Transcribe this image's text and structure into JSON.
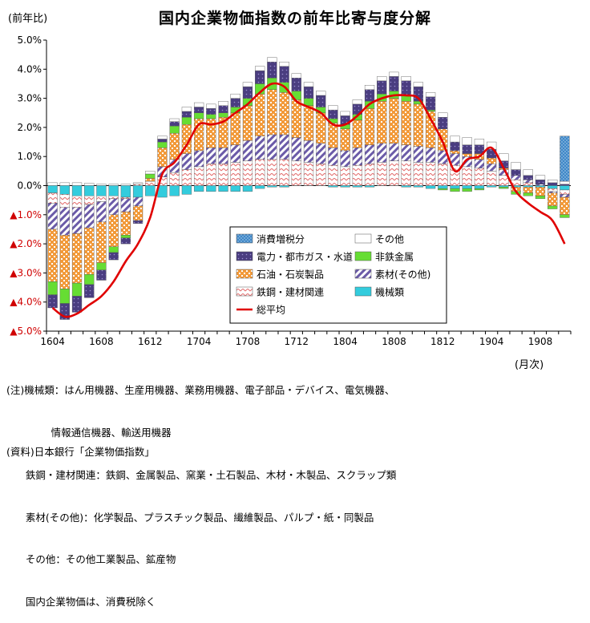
{
  "title": "国内企業物価指数の前年比寄与度分解",
  "y_unit": "(前年比)",
  "x_unit": "(月次)",
  "colors": {
    "機械類": "#33ccdd",
    "鉄鋼・建材関連": "#e36f6f",
    "石油・石炭製品": "#f29a3a",
    "電力・都市ガス・水道": "#4a3d80",
    "非鉄金属": "#66dd33",
    "素材(その他)": "#6b5ba8",
    "その他": "#ffffff",
    "消費増税分": "#3f87c7",
    "総平均": "#e00000"
  },
  "chart_data": {
    "type": "bar",
    "stacked": true,
    "ylim": [
      -5.0,
      5.0
    ],
    "yticks": [
      "5.0%",
      "4.0%",
      "3.0%",
      "2.0%",
      "1.0%",
      "0.0%",
      "▲1.0%",
      "▲2.0%",
      "▲3.0%",
      "▲4.0%",
      "▲5.0%"
    ],
    "xtick_labels": [
      {
        "index": 0,
        "label": "1604"
      },
      {
        "index": 4,
        "label": "1608"
      },
      {
        "index": 8,
        "label": "1612"
      },
      {
        "index": 12,
        "label": "1704"
      },
      {
        "index": 16,
        "label": "1708"
      },
      {
        "index": 20,
        "label": "1712"
      },
      {
        "index": 24,
        "label": "1804"
      },
      {
        "index": 28,
        "label": "1808"
      },
      {
        "index": 32,
        "label": "1812"
      },
      {
        "index": 36,
        "label": "1904"
      },
      {
        "index": 40,
        "label": "1908"
      }
    ],
    "categories": [
      "1604",
      "1605",
      "1606",
      "1607",
      "1608",
      "1609",
      "1610",
      "1611",
      "1612",
      "1701",
      "1702",
      "1703",
      "1704",
      "1705",
      "1706",
      "1707",
      "1708",
      "1709",
      "1710",
      "1711",
      "1712",
      "1801",
      "1802",
      "1803",
      "1804",
      "1805",
      "1806",
      "1807",
      "1808",
      "1809",
      "1810",
      "1811",
      "1812",
      "1901",
      "1902",
      "1903",
      "1904",
      "1905",
      "1906",
      "1907",
      "1908",
      "1909",
      "1910"
    ],
    "series": [
      {
        "name": "機械類",
        "values": [
          -0.25,
          -0.3,
          -0.35,
          -0.35,
          -0.35,
          -0.35,
          -0.4,
          -0.4,
          -0.35,
          -0.4,
          -0.35,
          -0.3,
          -0.2,
          -0.2,
          -0.2,
          -0.2,
          -0.2,
          -0.1,
          -0.05,
          -0.05,
          0,
          0,
          0,
          -0.05,
          -0.05,
          -0.05,
          -0.05,
          0,
          0,
          -0.05,
          -0.05,
          -0.1,
          -0.1,
          -0.1,
          -0.1,
          -0.1,
          -0.05,
          -0.05,
          -0.05,
          -0.05,
          -0.05,
          -0.1,
          -0.15
        ]
      },
      {
        "name": "鉄鋼・建材関連",
        "values": [
          -0.35,
          -0.45,
          -0.4,
          -0.3,
          -0.2,
          -0.1,
          -0.05,
          0.05,
          0.15,
          0.3,
          0.45,
          0.55,
          0.65,
          0.75,
          0.75,
          0.8,
          0.85,
          0.9,
          0.9,
          0.9,
          0.85,
          0.8,
          0.75,
          0.7,
          0.65,
          0.7,
          0.75,
          0.8,
          0.85,
          0.85,
          0.8,
          0.8,
          0.75,
          0.7,
          0.65,
          0.6,
          0.5,
          0.35,
          0.2,
          0.1,
          0,
          -0.1,
          -0.15
        ]
      },
      {
        "name": "石油・石炭製品",
        "values": [
          -1.8,
          -1.85,
          -1.7,
          -1.6,
          -1.4,
          -1.1,
          -0.8,
          -0.5,
          0.1,
          0.65,
          0.9,
          1.0,
          1.1,
          1.0,
          1.05,
          1.1,
          1.2,
          1.45,
          1.55,
          1.45,
          1.3,
          1.2,
          1.05,
          0.85,
          0.75,
          0.95,
          1.25,
          1.45,
          1.55,
          1.5,
          1.45,
          1.25,
          0.75,
          0.1,
          0.1,
          0.2,
          0.2,
          0.05,
          -0.15,
          -0.2,
          -0.3,
          -0.45,
          -0.6
        ]
      },
      {
        "name": "電力・都市ガス・水道",
        "values": [
          -0.45,
          -0.55,
          -0.55,
          -0.45,
          -0.35,
          -0.25,
          -0.2,
          -0.1,
          0,
          0.1,
          0.15,
          0.2,
          0.2,
          0.2,
          0.25,
          0.3,
          0.4,
          0.45,
          0.55,
          0.55,
          0.45,
          0.4,
          0.4,
          0.3,
          0.3,
          0.35,
          0.4,
          0.45,
          0.5,
          0.5,
          0.5,
          0.45,
          0.4,
          0.3,
          0.3,
          0.3,
          0.3,
          0.25,
          0.2,
          0.15,
          0.15,
          0.1,
          0.05
        ]
      },
      {
        "name": "非鉄金属",
        "values": [
          -0.45,
          -0.5,
          -0.45,
          -0.35,
          -0.25,
          -0.2,
          -0.1,
          0,
          0.15,
          0.2,
          0.25,
          0.25,
          0.2,
          0.15,
          0.15,
          0.2,
          0.25,
          0.35,
          0.4,
          0.35,
          0.3,
          0.25,
          0.2,
          0.15,
          0.15,
          0.2,
          0.25,
          0.25,
          0.25,
          0.2,
          0.1,
          0.05,
          -0.05,
          -0.1,
          -0.1,
          -0.05,
          0,
          -0.05,
          -0.1,
          -0.1,
          -0.1,
          -0.1,
          -0.1
        ]
      },
      {
        "name": "素材(その他)",
        "values": [
          -0.9,
          -0.95,
          -0.9,
          -0.8,
          -0.7,
          -0.55,
          -0.45,
          -0.3,
          0,
          0.35,
          0.45,
          0.55,
          0.55,
          0.55,
          0.55,
          0.6,
          0.7,
          0.8,
          0.85,
          0.85,
          0.8,
          0.75,
          0.7,
          0.6,
          0.55,
          0.6,
          0.65,
          0.65,
          0.6,
          0.55,
          0.55,
          0.5,
          0.45,
          0.4,
          0.35,
          0.3,
          0.25,
          0.2,
          0.15,
          0.1,
          0.05,
          -0.05,
          -0.1
        ]
      },
      {
        "name": "その他",
        "values": [
          0.1,
          0.1,
          0.1,
          0.08,
          0.05,
          0.05,
          0.05,
          0.05,
          0.1,
          0.1,
          0.1,
          0.15,
          0.15,
          0.15,
          0.15,
          0.15,
          0.15,
          0.15,
          0.15,
          0.15,
          0.15,
          0.15,
          0.15,
          0.15,
          0.15,
          0.15,
          0.15,
          0.15,
          0.15,
          0.15,
          0.15,
          0.15,
          0.15,
          0.2,
          0.25,
          0.2,
          0.25,
          0.25,
          0.25,
          0.2,
          0.15,
          0.1,
          0.1
        ]
      },
      {
        "name": "消費増税分",
        "values": [
          0,
          0,
          0,
          0,
          0,
          0,
          0,
          0,
          0,
          0,
          0,
          0,
          0,
          0,
          0,
          0,
          0,
          0,
          0,
          0,
          0,
          0,
          0,
          0,
          0,
          0,
          0,
          0,
          0,
          0,
          0,
          0,
          0,
          0,
          0,
          0,
          0,
          0,
          0,
          0,
          0,
          0,
          1.55
        ]
      },
      {
        "name": "総平均",
        "type": "line",
        "values": [
          -4.2,
          -4.5,
          -4.4,
          -4.1,
          -3.8,
          -3.3,
          -2.6,
          -2.0,
          -1.1,
          0.4,
          0.8,
          1.4,
          2.1,
          2.1,
          2.2,
          2.5,
          2.8,
          3.2,
          3.5,
          3.4,
          2.9,
          2.7,
          2.5,
          2.1,
          2.1,
          2.4,
          2.8,
          3.0,
          3.1,
          3.1,
          3.0,
          2.3,
          1.5,
          0.5,
          0.9,
          1.0,
          1.3,
          0.6,
          -0.2,
          -0.6,
          -0.9,
          -1.2,
          -2.0
        ]
      }
    ],
    "legend": {
      "position": "inside-bottom-center",
      "items": [
        "消費増税分",
        "その他",
        "電力・都市ガス・水道",
        "非鉄金属",
        "石油・石炭製品",
        "素材(その他)",
        "鉄鋼・建材関連",
        "機械類",
        "総平均"
      ]
    },
    "grid": false
  },
  "notes": [
    "(注)機械類：はん用機器、生産用機器、業務用機器、電子部品・デバイス、電気機器、",
    "              情報通信機器、輸送用機器",
    "      鉄鋼・建材関連：鉄鋼、金属製品、窯業・土石製品、木材・木製品、スクラップ類",
    "      素材(その他)：化学製品、プラスチック製品、繊維製品、パルプ・紙・同製品",
    "      その他：その他工業製品、鉱産物",
    "      国内企業物価は、消費税除く"
  ],
  "source": "(資料)日本銀行「企業物価指数」"
}
